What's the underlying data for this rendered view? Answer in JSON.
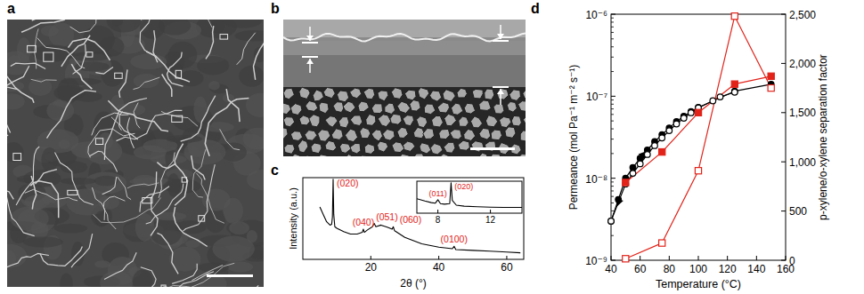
{
  "images": [
    {
      "label": "a"
    },
    {
      "label": "b"
    }
  ],
  "chart_data": [
    {
      "type": "line",
      "label": "c",
      "x_label": "2θ (°)",
      "y_label": "Intensity (a.u.)",
      "xlim": [
        0,
        65
      ],
      "xticks": [
        20,
        40,
        60
      ],
      "ylim": [
        0,
        100
      ],
      "tick_labels": "x",
      "color": "#000000",
      "x": [
        5,
        6,
        7,
        8,
        8.5,
        8.7,
        8.9,
        9.1,
        9.4,
        10,
        12,
        14,
        16,
        17.5,
        17.8,
        18.1,
        19,
        20.5,
        21,
        21.5,
        23,
        25,
        26.3,
        26.6,
        27,
        30,
        35,
        40,
        44,
        44.5,
        45,
        50,
        55,
        60,
        64
      ],
      "values": [
        64,
        55,
        46,
        42,
        43,
        52,
        98,
        55,
        40,
        38,
        34,
        31,
        31,
        33,
        37,
        33,
        36,
        40,
        44,
        40,
        42,
        39,
        37,
        40,
        35,
        27,
        19,
        15,
        13,
        16,
        12,
        11,
        10,
        9,
        8
      ],
      "annotations": [
        {
          "text": "(020)",
          "x": 8.9,
          "color": "#e2231a"
        },
        {
          "text": "(040)",
          "x": 17.8,
          "color": "#e2231a"
        },
        {
          "text": "(051)",
          "x": 21,
          "color": "#e2231a"
        },
        {
          "text": "(060)",
          "x": 26.6,
          "color": "#e2231a"
        },
        {
          "text": "(0100)",
          "x": 44.5,
          "color": "#e2231a"
        }
      ],
      "inset": {
        "type": "line",
        "xlim": [
          6.4,
          14.4
        ],
        "xticks": [
          8,
          12
        ],
        "ylim": [
          0,
          100
        ],
        "tick_labels": "x",
        "color": "#000000",
        "x": [
          6.4,
          7,
          7.5,
          7.8,
          8.0,
          8.2,
          8.5,
          8.9,
          9.0,
          9.1,
          9.4,
          10,
          11,
          12,
          13,
          14.4
        ],
        "values": [
          45,
          38,
          33,
          31,
          42,
          30,
          28,
          30,
          95,
          40,
          25,
          22,
          20,
          19,
          18,
          18
        ],
        "annotations": [
          {
            "text": "(011)",
            "x": 8.0,
            "color": "#e2231a"
          },
          {
            "text": "(020)",
            "x": 9.0,
            "color": "#e2231a"
          }
        ]
      }
    },
    {
      "type": "line",
      "label": "d",
      "x_label": "Temperature (°C)",
      "y_label": "Permeance (mol Pa⁻¹ m⁻² s⁻¹)",
      "y2_label": "p-xylene/o-xylene separation factor",
      "xlim": [
        40,
        160
      ],
      "xticks": [
        40,
        60,
        80,
        100,
        120,
        140,
        160
      ],
      "ylim": [
        1e-09,
        1e-06
      ],
      "log": "y",
      "yticks": [
        {
          "value": 1e-09,
          "label": "10⁻⁹"
        },
        {
          "value": 1e-08,
          "label": "10⁻⁸"
        },
        {
          "value": 1e-07,
          "label": "10⁻⁷"
        },
        {
          "value": 1e-06,
          "label": "10⁻⁶"
        }
      ],
      "y2lim": [
        0,
        2500
      ],
      "y2ticks": [
        0,
        500,
        {
          "value": 1000,
          "label": "1,000"
        },
        {
          "value": 1500,
          "label": "1,500"
        },
        {
          "value": 2000,
          "label": "2,000"
        },
        {
          "value": 2500,
          "label": "2,500"
        }
      ],
      "series": [
        {
          "color": "#000000",
          "marker": "circle",
          "line_style": "solid",
          "x": [
            40,
            45,
            50,
            55,
            60,
            65,
            70,
            75,
            80,
            85,
            90,
            95,
            100,
            125,
            150
          ],
          "values": [
            3e-09,
            5.5e-09,
            1e-08,
            1.35e-08,
            1.75e-08,
            2.2e-08,
            2.8e-08,
            3.4e-08,
            4.1e-08,
            4.9e-08,
            5.7e-08,
            6.5e-08,
            7.3e-08,
            1.15e-07,
            1.4e-07
          ]
        },
        {
          "color": "#000000",
          "marker": "open-circle",
          "line_style": "solid",
          "x": [
            40,
            50,
            55,
            60,
            65,
            70,
            75,
            80,
            85,
            90,
            95,
            100,
            110,
            115,
            125
          ],
          "values": [
            3e-09,
            8.5e-09,
            1.15e-08,
            1.5e-08,
            1.95e-08,
            2.5e-08,
            3.1e-08,
            3.8e-08,
            4.6e-08,
            5.4e-08,
            6.3e-08,
            7.2e-08,
            8.8e-08,
            9.8e-08,
            1.12e-07
          ]
        },
        {
          "color": "#e2231a",
          "marker": "square",
          "line_style": "solid",
          "axis": "y2",
          "x": [
            50,
            75,
            100,
            125,
            150
          ],
          "values": [
            790,
            1100,
            1500,
            1790,
            1870
          ]
        },
        {
          "color": "#e2231a",
          "marker": "open-square",
          "line_style": "solid",
          "axis": "y2",
          "x": [
            50,
            75,
            100,
            125,
            150
          ],
          "values": [
            15,
            175,
            910,
            2480,
            1750
          ]
        }
      ]
    }
  ]
}
